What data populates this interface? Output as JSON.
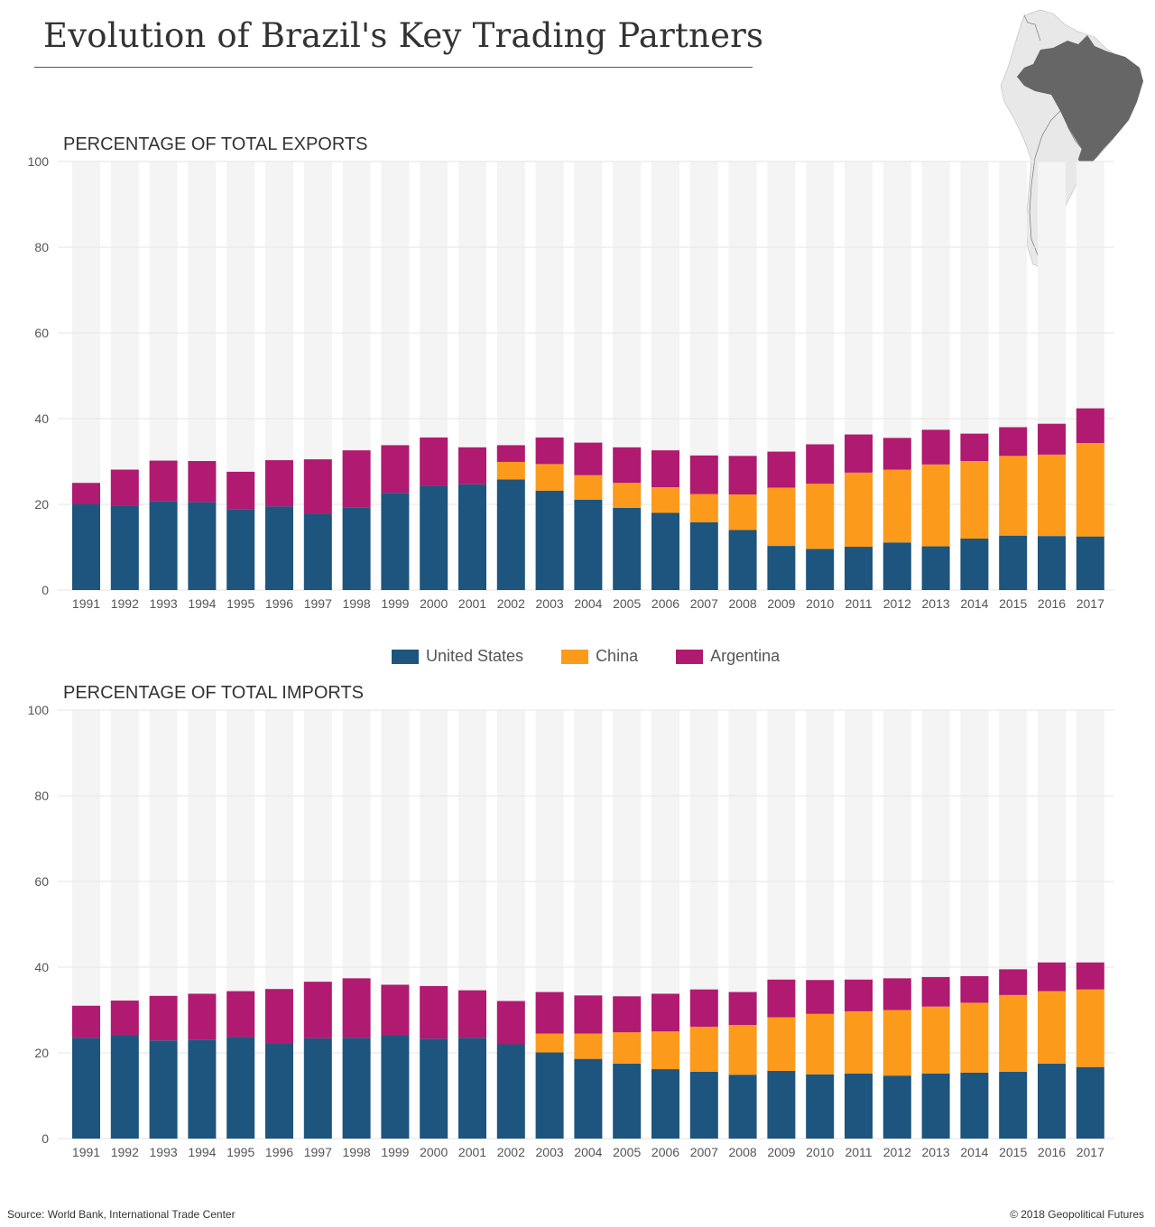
{
  "header": {
    "title": "Evolution of Brazil's Key Trading Partners",
    "map_icon": "south-america-map-brazil-highlighted"
  },
  "legend": {
    "items": [
      {
        "label": "United States",
        "color": "#1d557e"
      },
      {
        "label": "China",
        "color": "#fc9a1b"
      },
      {
        "label": "Argentina",
        "color": "#b01a70"
      }
    ]
  },
  "footer": {
    "source": "Source: World Bank, International Trade Center",
    "copyright": "© 2018 Geopolitical Futures"
  },
  "chart_data": [
    {
      "type": "bar",
      "stacked": true,
      "title": "PERCENTAGE OF TOTAL EXPORTS",
      "xlabel": "",
      "ylabel": "",
      "ylim": [
        0,
        100
      ],
      "yticks": [
        0,
        20,
        40,
        60,
        80,
        100
      ],
      "grid": true,
      "legend": "bottom-center",
      "categories": [
        "1991",
        "1992",
        "1993",
        "1994",
        "1995",
        "1996",
        "1997",
        "1998",
        "1999",
        "2000",
        "2001",
        "2002",
        "2003",
        "2004",
        "2005",
        "2006",
        "2007",
        "2008",
        "2009",
        "2010",
        "2011",
        "2012",
        "2013",
        "2014",
        "2015",
        "2016",
        "2017"
      ],
      "series": [
        {
          "name": "United States",
          "color": "#1d557e",
          "values": [
            20.0,
            19.7,
            20.7,
            20.5,
            18.9,
            19.5,
            17.8,
            19.3,
            22.7,
            24.3,
            24.7,
            25.8,
            23.2,
            21.1,
            19.2,
            18.0,
            15.8,
            14.0,
            10.3,
            9.6,
            10.1,
            11.1,
            10.2,
            12.0,
            12.7,
            12.6,
            12.5
          ]
        },
        {
          "name": "China",
          "color": "#fc9a1b",
          "values": [
            0,
            0,
            0,
            0,
            0,
            0,
            0,
            0,
            0,
            0,
            0,
            4.1,
            6.2,
            5.7,
            5.8,
            6.0,
            6.6,
            8.3,
            13.6,
            15.2,
            17.3,
            17.0,
            19.1,
            18.1,
            18.6,
            19.0,
            21.8
          ]
        },
        {
          "name": "Argentina",
          "color": "#b01a70",
          "values": [
            5.0,
            8.4,
            9.5,
            9.6,
            8.7,
            10.8,
            12.7,
            13.3,
            11.1,
            11.3,
            8.6,
            3.9,
            6.2,
            7.6,
            8.3,
            8.6,
            9.0,
            9.0,
            8.4,
            9.2,
            8.9,
            7.4,
            8.1,
            6.4,
            6.7,
            7.2,
            8.1
          ]
        }
      ]
    },
    {
      "type": "bar",
      "stacked": true,
      "title": "PERCENTAGE OF TOTAL IMPORTS",
      "xlabel": "",
      "ylabel": "",
      "ylim": [
        0,
        100
      ],
      "yticks": [
        0,
        20,
        40,
        60,
        80,
        100
      ],
      "grid": true,
      "legend": "top-center",
      "categories": [
        "1991",
        "1992",
        "1993",
        "1994",
        "1995",
        "1996",
        "1997",
        "1998",
        "1999",
        "2000",
        "2001",
        "2002",
        "2003",
        "2004",
        "2005",
        "2006",
        "2007",
        "2008",
        "2009",
        "2010",
        "2011",
        "2012",
        "2013",
        "2014",
        "2015",
        "2016",
        "2017"
      ],
      "series": [
        {
          "name": "United States",
          "color": "#1d557e",
          "values": [
            23.5,
            24.1,
            22.9,
            23.1,
            23.7,
            22.3,
            23.4,
            23.5,
            24.0,
            23.3,
            23.5,
            22.0,
            20.1,
            18.6,
            17.5,
            16.2,
            15.6,
            14.9,
            15.8,
            15.0,
            15.2,
            14.7,
            15.2,
            15.4,
            15.6,
            17.5,
            16.7
          ]
        },
        {
          "name": "China",
          "color": "#fc9a1b",
          "values": [
            0,
            0,
            0,
            0,
            0,
            0,
            0,
            0,
            0,
            0,
            0,
            0,
            4.4,
            5.9,
            7.3,
            8.8,
            10.5,
            11.6,
            12.5,
            14.1,
            14.5,
            15.3,
            15.6,
            16.3,
            17.9,
            16.9,
            18.1
          ]
        },
        {
          "name": "Argentina",
          "color": "#b01a70",
          "values": [
            7.5,
            8.1,
            10.4,
            10.7,
            10.7,
            12.6,
            13.2,
            13.9,
            11.9,
            12.3,
            11.1,
            10.1,
            9.7,
            8.9,
            8.4,
            8.8,
            8.7,
            7.7,
            8.8,
            7.9,
            7.4,
            7.4,
            6.9,
            6.2,
            6.0,
            6.7,
            6.3
          ]
        }
      ]
    }
  ]
}
